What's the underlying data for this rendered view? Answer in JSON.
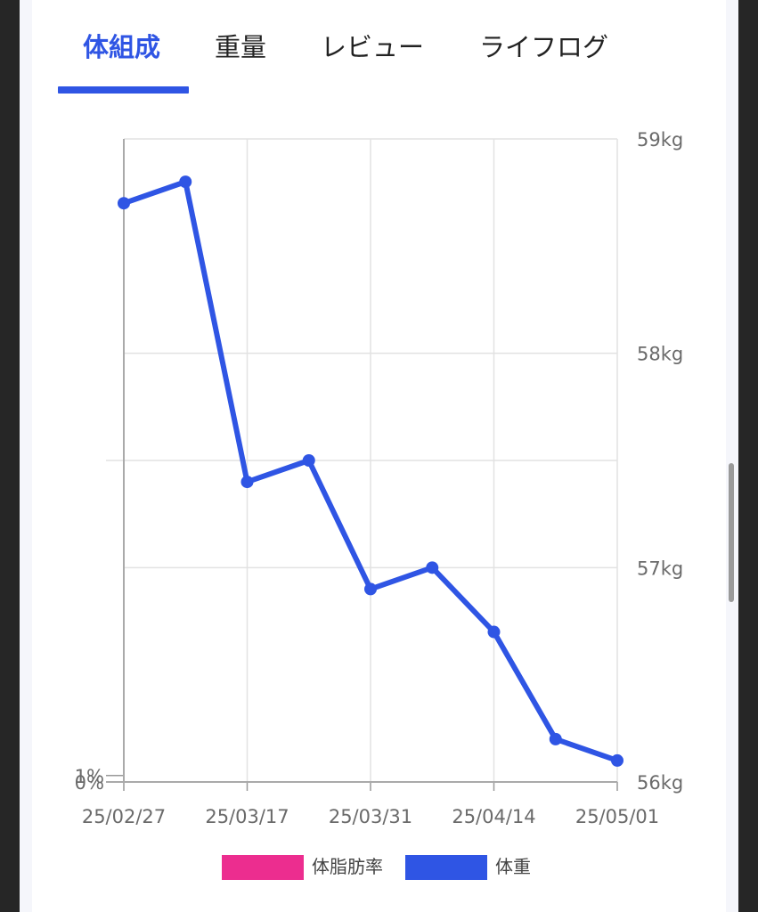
{
  "tabs": [
    {
      "label": "体組成",
      "active": true
    },
    {
      "label": "重量",
      "active": false
    },
    {
      "label": "レビュー",
      "active": false
    },
    {
      "label": "ライフログ",
      "active": false
    }
  ],
  "chart_data": {
    "type": "line",
    "x_tick_labels": [
      "25/02/27",
      "25/03/17",
      "25/03/31",
      "25/04/14",
      "25/05/01"
    ],
    "y_left_tick_labels": [
      "1%",
      "0%"
    ],
    "y_right_tick_labels": [
      "59kg",
      "58kg",
      "57kg",
      "56kg"
    ],
    "ylim_left": [
      0,
      1
    ],
    "ylim_right": [
      56,
      59
    ],
    "grid": true,
    "legend_position": "bottom",
    "series": [
      {
        "name": "体脂肪率",
        "color": "#ec2d8f",
        "axis": "left",
        "values": []
      },
      {
        "name": "体重",
        "color": "#2f55e4",
        "axis": "right",
        "values": [
          58.7,
          58.8,
          57.4,
          57.5,
          56.9,
          57.0,
          56.7,
          56.2,
          56.1
        ]
      }
    ]
  },
  "colors": {
    "accent": "#2f55e4",
    "pink": "#ec2d8f"
  }
}
